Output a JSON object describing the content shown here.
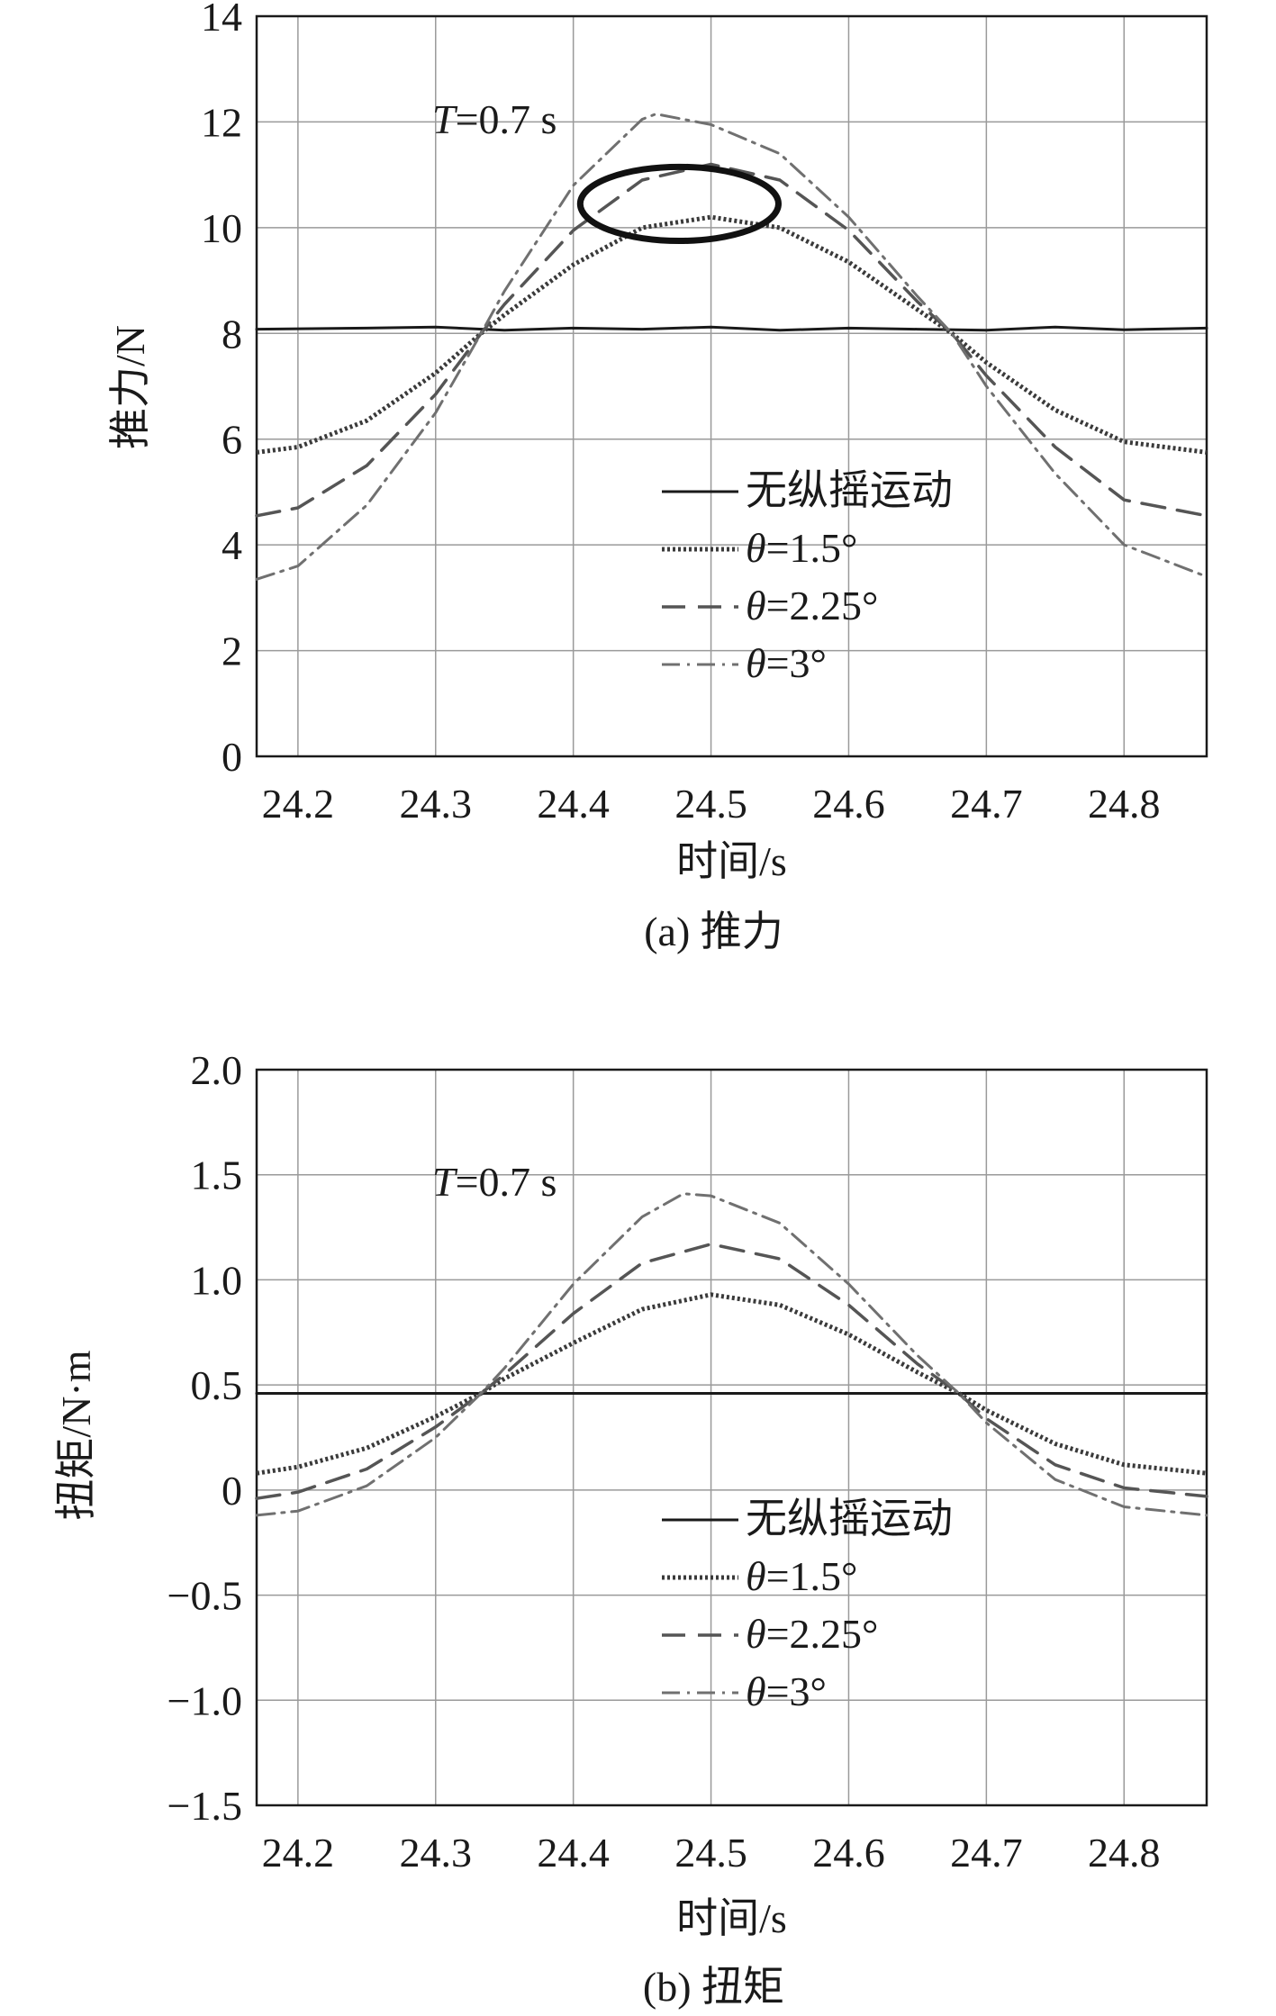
{
  "chart_data": [
    {
      "type": "line",
      "caption": "(a) 推力",
      "xlabel": "时间/s",
      "ylabel": "推力/N",
      "annotation": {
        "prefix": "T",
        "text": "=0.7 s"
      },
      "xlim": [
        24.17,
        24.86
      ],
      "ylim": [
        0,
        14
      ],
      "xticks": [
        24.2,
        24.3,
        24.4,
        24.5,
        24.6,
        24.7,
        24.8
      ],
      "xtick_labels": [
        "24.2",
        "24.3",
        "24.4",
        "24.5",
        "24.6",
        "24.7",
        "24.8"
      ],
      "yticks": [
        0,
        2,
        4,
        6,
        8,
        10,
        12,
        14
      ],
      "ytick_labels": [
        "0",
        "2",
        "4",
        "6",
        "8",
        "10",
        "12",
        "14"
      ],
      "grid": true,
      "legend_position": "bottom-right",
      "highlight_ellipse": {
        "center": [
          24.477,
          10.45
        ],
        "semi_axes": [
          0.072,
          0.7
        ]
      },
      "series": [
        {
          "name": "无纵摇运动",
          "prefix": "",
          "style": "solid",
          "color": "#1a1a1a",
          "x": [
            24.17,
            24.25,
            24.3,
            24.35,
            24.4,
            24.45,
            24.5,
            24.55,
            24.6,
            24.65,
            24.7,
            24.75,
            24.8,
            24.86
          ],
          "y": [
            8.08,
            8.1,
            8.12,
            8.06,
            8.1,
            8.08,
            8.12,
            8.06,
            8.1,
            8.08,
            8.06,
            8.12,
            8.07,
            8.1
          ]
        },
        {
          "name": "=1.5°",
          "prefix": "θ",
          "style": "dotted",
          "color": "#3a3a3a",
          "x": [
            24.17,
            24.2,
            24.25,
            24.3,
            24.333,
            24.35,
            24.4,
            24.45,
            24.5,
            24.55,
            24.6,
            24.65,
            24.675,
            24.7,
            24.75,
            24.8,
            24.86
          ],
          "y": [
            5.75,
            5.85,
            6.35,
            7.25,
            8.0,
            8.35,
            9.3,
            10.0,
            10.2,
            10.0,
            9.35,
            8.45,
            8.0,
            7.45,
            6.55,
            5.95,
            5.75
          ]
        },
        {
          "name": "=2.25°",
          "prefix": "θ",
          "style": "dashed",
          "color": "#555555",
          "x": [
            24.17,
            24.2,
            24.25,
            24.3,
            24.333,
            24.35,
            24.4,
            24.45,
            24.5,
            24.55,
            24.6,
            24.65,
            24.675,
            24.7,
            24.75,
            24.8,
            24.86
          ],
          "y": [
            4.55,
            4.7,
            5.5,
            6.85,
            8.0,
            8.55,
            9.95,
            10.9,
            11.2,
            10.9,
            9.95,
            8.6,
            8.0,
            7.2,
            5.85,
            4.85,
            4.55
          ]
        },
        {
          "name": "=3°",
          "prefix": "θ",
          "style": "dashdot",
          "color": "#707070",
          "x": [
            24.17,
            24.2,
            24.25,
            24.3,
            24.333,
            24.35,
            24.4,
            24.45,
            24.46,
            24.5,
            24.55,
            24.6,
            24.65,
            24.675,
            24.7,
            24.75,
            24.8,
            24.86
          ],
          "y": [
            3.35,
            3.6,
            4.75,
            6.5,
            8.0,
            8.8,
            10.8,
            12.05,
            12.15,
            11.95,
            11.4,
            10.2,
            8.7,
            8.0,
            7.0,
            5.35,
            4.0,
            3.4
          ]
        }
      ]
    },
    {
      "type": "line",
      "caption": "(b) 扭矩",
      "xlabel": "时间/s",
      "ylabel": "扭矩/N·m",
      "annotation": {
        "prefix": "T",
        "text": "=0.7 s"
      },
      "xlim": [
        24.17,
        24.86
      ],
      "ylim": [
        -1.5,
        2.0
      ],
      "xticks": [
        24.2,
        24.3,
        24.4,
        24.5,
        24.6,
        24.7,
        24.8
      ],
      "xtick_labels": [
        "24.2",
        "24.3",
        "24.4",
        "24.5",
        "24.6",
        "24.7",
        "24.8"
      ],
      "yticks": [
        2.0,
        1.5,
        1.0,
        0.5,
        0,
        -0.5,
        -1.0,
        -1.5
      ],
      "ytick_labels": [
        "2.0",
        "1.5",
        "1.0",
        "0.5",
        "0",
        "−0.5",
        "−1.0",
        "−1.5"
      ],
      "grid": true,
      "legend_position": "bottom-right",
      "series": [
        {
          "name": "无纵摇运动",
          "prefix": "",
          "style": "solid",
          "color": "#1a1a1a",
          "x": [
            24.17,
            24.3,
            24.4,
            24.5,
            24.6,
            24.7,
            24.86
          ],
          "y": [
            0.46,
            0.46,
            0.46,
            0.46,
            0.46,
            0.46,
            0.46
          ]
        },
        {
          "name": "=1.5°",
          "prefix": "θ",
          "style": "dotted",
          "color": "#3a3a3a",
          "x": [
            24.17,
            24.2,
            24.25,
            24.3,
            24.333,
            24.35,
            24.4,
            24.45,
            24.5,
            24.55,
            24.6,
            24.65,
            24.68,
            24.7,
            24.75,
            24.8,
            24.86
          ],
          "y": [
            0.08,
            0.11,
            0.2,
            0.35,
            0.46,
            0.53,
            0.7,
            0.86,
            0.93,
            0.88,
            0.74,
            0.56,
            0.46,
            0.38,
            0.22,
            0.12,
            0.08
          ]
        },
        {
          "name": "=2.25°",
          "prefix": "θ",
          "style": "dashed",
          "color": "#555555",
          "x": [
            24.17,
            24.2,
            24.25,
            24.3,
            24.333,
            24.35,
            24.4,
            24.45,
            24.5,
            24.55,
            24.6,
            24.65,
            24.68,
            24.7,
            24.75,
            24.8,
            24.86
          ],
          "y": [
            -0.04,
            -0.01,
            0.1,
            0.3,
            0.46,
            0.55,
            0.84,
            1.08,
            1.17,
            1.1,
            0.88,
            0.6,
            0.46,
            0.34,
            0.12,
            0.01,
            -0.03
          ]
        },
        {
          "name": "=3°",
          "prefix": "θ",
          "style": "dashdot",
          "color": "#707070",
          "x": [
            24.17,
            24.2,
            24.25,
            24.3,
            24.333,
            24.35,
            24.4,
            24.45,
            24.48,
            24.5,
            24.55,
            24.6,
            24.65,
            24.68,
            24.7,
            24.75,
            24.8,
            24.86
          ],
          "y": [
            -0.12,
            -0.1,
            0.02,
            0.25,
            0.46,
            0.58,
            0.98,
            1.3,
            1.41,
            1.4,
            1.27,
            0.98,
            0.64,
            0.46,
            0.32,
            0.05,
            -0.08,
            -0.12
          ]
        }
      ]
    }
  ]
}
